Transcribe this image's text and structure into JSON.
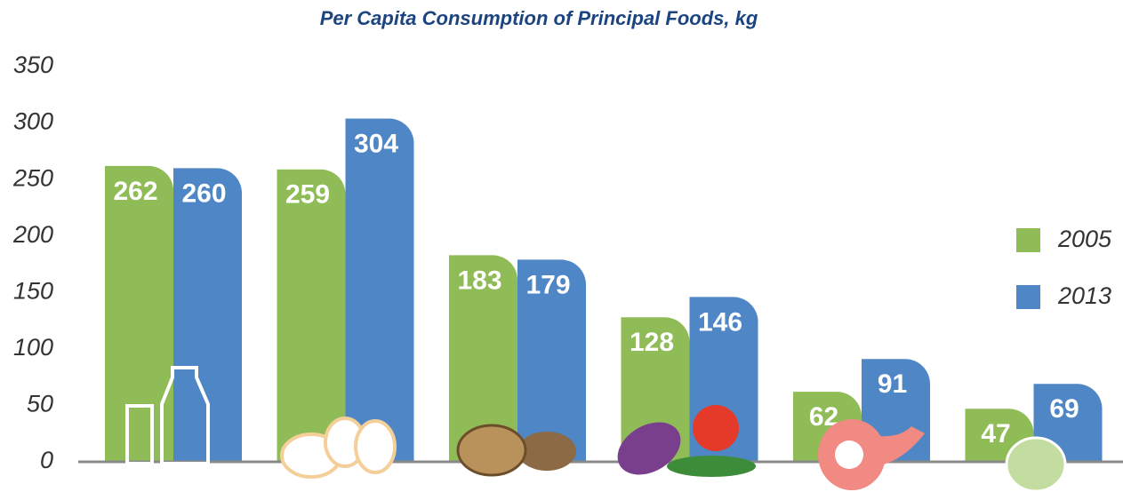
{
  "chart_data": {
    "type": "bar",
    "title": "Per Capita Consumption of Principal Foods, kg",
    "categories": [
      null,
      null,
      null,
      null,
      null,
      null
    ],
    "series": [
      {
        "name": "2005",
        "color": "#8fbc56",
        "values": [
          262,
          259,
          183,
          128,
          62,
          47
        ]
      },
      {
        "name": "2013",
        "color": "#4f86c6",
        "values": [
          260,
          304,
          179,
          146,
          91,
          69
        ]
      }
    ],
    "ylim": [
      0,
      350
    ],
    "yticks": [
      0,
      50,
      100,
      150,
      200,
      250,
      300,
      350
    ],
    "grid": false,
    "legend": "right"
  }
}
